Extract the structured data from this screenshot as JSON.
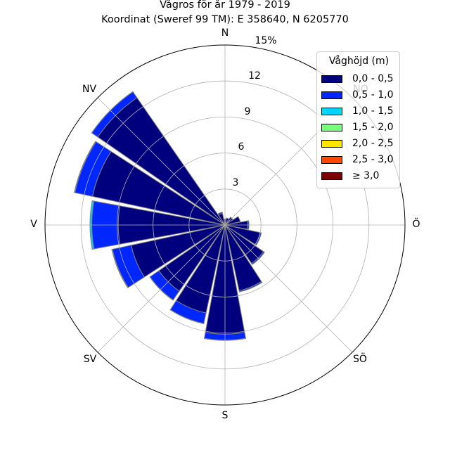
{
  "title": "Vågros för år 1979 - 2019",
  "subtitle": "Koordinat (Sweref 99 TM): E 358640, N 6205770",
  "directions": [
    "N",
    "NO",
    "Ö",
    "SÖ",
    "S",
    "SV",
    "V",
    "NV"
  ],
  "radial_ticks": [
    "3",
    "6",
    "9",
    "12",
    "15%"
  ],
  "legend": {
    "title": "Våghöjd (m)",
    "items": [
      {
        "label": "0,0 - 0,5",
        "color": "#00007f"
      },
      {
        "label": "0,5 - 1,0",
        "color": "#0027ff"
      },
      {
        "label": "1,0 - 1,5",
        "color": "#00d4ff"
      },
      {
        "label": "1,5 - 2,0",
        "color": "#7aff7d"
      },
      {
        "label": "2,0 - 2,5",
        "color": "#ffe600"
      },
      {
        "label": "2,5 - 3,0",
        "color": "#ff4700"
      },
      {
        "label": "≥ 3,0",
        "color": "#7f0000"
      }
    ]
  },
  "chart_data": {
    "type": "windrose",
    "rmax": 15,
    "unit": "%",
    "sector_width_deg": 22.5,
    "rings": [
      3,
      6,
      9,
      12,
      15
    ],
    "sectors": [
      {
        "dir": "N",
        "angle": 0,
        "values": [
          0.5,
          0.0,
          0,
          0,
          0,
          0,
          0
        ]
      },
      {
        "dir": "NNE",
        "angle": 22.5,
        "values": [
          0.6,
          0.0,
          0,
          0,
          0,
          0,
          0
        ]
      },
      {
        "dir": "NE",
        "angle": 45,
        "values": [
          0.8,
          0.0,
          0,
          0,
          0,
          0,
          0
        ]
      },
      {
        "dir": "ENE",
        "angle": 67.5,
        "values": [
          1.3,
          0.0,
          0,
          0,
          0,
          0,
          0
        ]
      },
      {
        "dir": "E",
        "angle": 90,
        "values": [
          1.9,
          0.1,
          0,
          0,
          0,
          0,
          0
        ]
      },
      {
        "dir": "ESE",
        "angle": 112.5,
        "values": [
          3.0,
          0.1,
          0,
          0,
          0,
          0,
          0
        ]
      },
      {
        "dir": "SE",
        "angle": 135,
        "values": [
          3.9,
          0.1,
          0,
          0,
          0,
          0,
          0
        ]
      },
      {
        "dir": "SSE",
        "angle": 157.5,
        "values": [
          5.6,
          0.1,
          0,
          0,
          0,
          0,
          0
        ]
      },
      {
        "dir": "S",
        "angle": 180,
        "values": [
          9.1,
          0.5,
          0.02,
          0,
          0,
          0,
          0
        ]
      },
      {
        "dir": "SSW",
        "angle": 202.5,
        "values": [
          7.5,
          0.9,
          0.02,
          0,
          0,
          0,
          0
        ]
      },
      {
        "dir": "SW",
        "angle": 225,
        "values": [
          6.7,
          0.9,
          0.02,
          0,
          0,
          0,
          0
        ]
      },
      {
        "dir": "WSW",
        "angle": 247.5,
        "values": [
          8.0,
          1.6,
          0.05,
          0,
          0,
          0,
          0
        ]
      },
      {
        "dir": "W",
        "angle": 270,
        "values": [
          8.9,
          2.2,
          0.15,
          0,
          0,
          0,
          0
        ]
      },
      {
        "dir": "WNW",
        "angle": 292.5,
        "values": [
          11.3,
          1.5,
          0.05,
          0,
          0,
          0,
          0
        ]
      },
      {
        "dir": "NW",
        "angle": 315,
        "values": [
          12.9,
          0.6,
          0.01,
          0,
          0,
          0,
          0
        ]
      },
      {
        "dir": "NNW",
        "angle": 337.5,
        "values": [
          1.0,
          0.1,
          0,
          0,
          0,
          0,
          0
        ]
      }
    ]
  }
}
